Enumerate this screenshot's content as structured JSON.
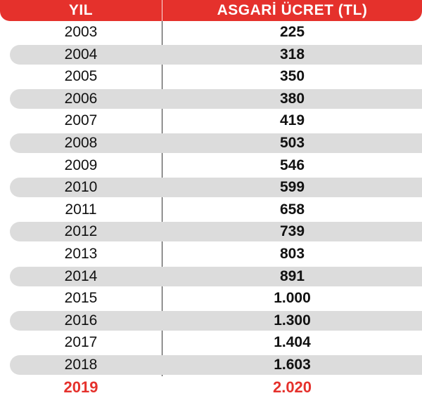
{
  "header": {
    "year_label": "YIL",
    "wage_label": "ASGARİ ÜCRET (TL)"
  },
  "rows": [
    {
      "year": "2003",
      "wage": "225"
    },
    {
      "year": "2004",
      "wage": "318"
    },
    {
      "year": "2005",
      "wage": "350"
    },
    {
      "year": "2006",
      "wage": "380"
    },
    {
      "year": "2007",
      "wage": "419"
    },
    {
      "year": "2008",
      "wage": "503"
    },
    {
      "year": "2009",
      "wage": "546"
    },
    {
      "year": "2010",
      "wage": "599"
    },
    {
      "year": "2011",
      "wage": "658"
    },
    {
      "year": "2012",
      "wage": "739"
    },
    {
      "year": "2013",
      "wage": "803"
    },
    {
      "year": "2014",
      "wage": "891"
    },
    {
      "year": "2015",
      "wage": "1.000"
    },
    {
      "year": "2016",
      "wage": "1.300"
    },
    {
      "year": "2017",
      "wage": "1.404"
    },
    {
      "year": "2018",
      "wage": "1.603"
    }
  ],
  "highlight_row": {
    "year": "2019",
    "wage": "2.020"
  },
  "colors": {
    "accent": "#e5312c",
    "stripe": "#dcdcdc",
    "text": "#111111"
  }
}
